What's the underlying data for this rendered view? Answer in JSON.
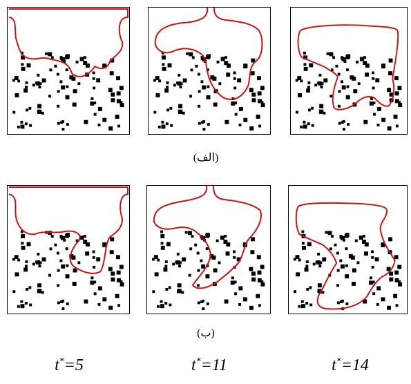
{
  "rows": [
    {
      "label": "(الف)"
    },
    {
      "label": "(ب)"
    }
  ],
  "columns": [
    {
      "t_prefix": "t",
      "t_star": "*",
      "t_value": "=5"
    },
    {
      "t_prefix": "t",
      "t_star": "*",
      "t_value": "=11"
    },
    {
      "t_prefix": "t",
      "t_star": "*",
      "t_value": "=14"
    }
  ],
  "colors": {
    "interface": "#cc1111",
    "particle": "#000000",
    "frame": "#000000"
  }
}
